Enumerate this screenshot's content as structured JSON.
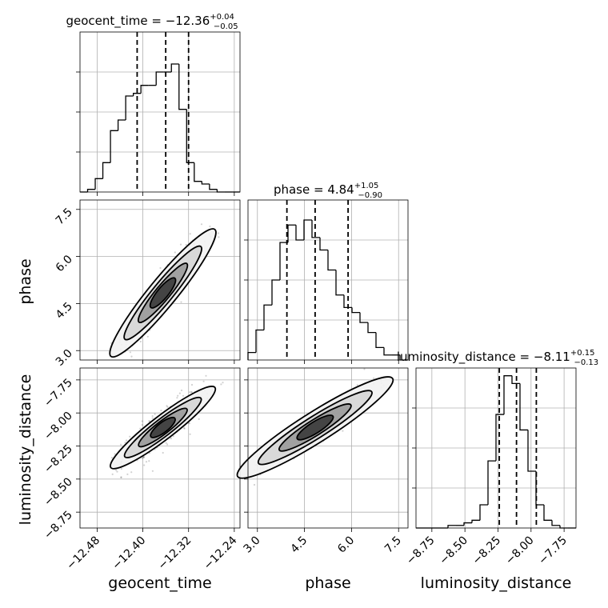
{
  "chart_data": {
    "type": "corner",
    "parameters": [
      {
        "name": "geocent_time",
        "label": "geocent_time",
        "range": [
          -12.51,
          -12.23
        ],
        "ticks": [
          -12.48,
          -12.4,
          -12.32,
          -12.24
        ],
        "tick_labels": [
          "−12.48",
          "−12.40",
          "−12.32",
          "−12.24"
        ],
        "title_prefix": "geocent_time = ",
        "title_value": "−12.36",
        "title_plus": "+0.04",
        "title_minus": "−0.05",
        "quantiles": [
          -12.41,
          -12.36,
          -12.32
        ]
      },
      {
        "name": "phase",
        "label": "phase",
        "range": [
          2.7,
          7.8
        ],
        "ticks": [
          3.0,
          4.5,
          6.0,
          7.5
        ],
        "tick_labels": [
          "3.0",
          "4.5",
          "6.0",
          "7.5"
        ],
        "title_prefix": "phase = ",
        "title_value": "4.84",
        "title_plus": "+1.05",
        "title_minus": "−0.90",
        "quantiles": [
          3.94,
          4.84,
          5.89
        ]
      },
      {
        "name": "luminosity_distance",
        "label": "luminosity_distance",
        "range": [
          -8.87,
          -7.66
        ],
        "ticks": [
          -8.75,
          -8.5,
          -8.25,
          -8.0,
          -7.75
        ],
        "tick_labels": [
          "−8.75",
          "−8.50",
          "−8.25",
          "−8.00",
          "−7.75"
        ],
        "title_prefix": "luminosity_distance = ",
        "title_value": "−8.11",
        "title_plus": "+0.15",
        "title_minus": "−0.13",
        "quantiles": [
          -8.24,
          -8.11,
          -7.96
        ]
      }
    ],
    "histograms": [
      {
        "param": "geocent_time",
        "edges_start": -12.51,
        "bin_width": 0.01333,
        "counts": [
          0,
          1,
          5,
          11,
          23,
          27,
          36,
          37,
          40,
          40,
          45,
          45,
          48,
          31,
          11,
          4,
          3,
          1,
          0,
          0,
          0
        ],
        "ylim": [
          0,
          60
        ]
      },
      {
        "param": "phase",
        "edges_start": 2.7,
        "bin_width": 0.255,
        "counts": [
          3,
          12,
          22,
          32,
          47,
          54,
          48,
          56,
          49,
          44,
          36,
          26,
          21,
          19,
          15,
          11,
          5,
          2,
          2,
          0
        ],
        "ylim": [
          0,
          64
        ]
      },
      {
        "param": "luminosity_distance",
        "edges_start": -8.87,
        "bin_width": 0.0605,
        "counts": [
          0,
          0,
          0,
          0,
          1,
          1,
          2,
          3,
          9,
          26,
          44,
          59,
          56,
          38,
          22,
          9,
          3,
          1,
          0,
          0
        ],
        "ylim": [
          0,
          62
        ]
      }
    ],
    "pairs": [
      {
        "x": "geocent_time",
        "y": "phase"
      },
      {
        "x": "geocent_time",
        "y": "luminosity_distance"
      },
      {
        "x": "phase",
        "y": "luminosity_distance"
      }
    ],
    "grid": true
  }
}
